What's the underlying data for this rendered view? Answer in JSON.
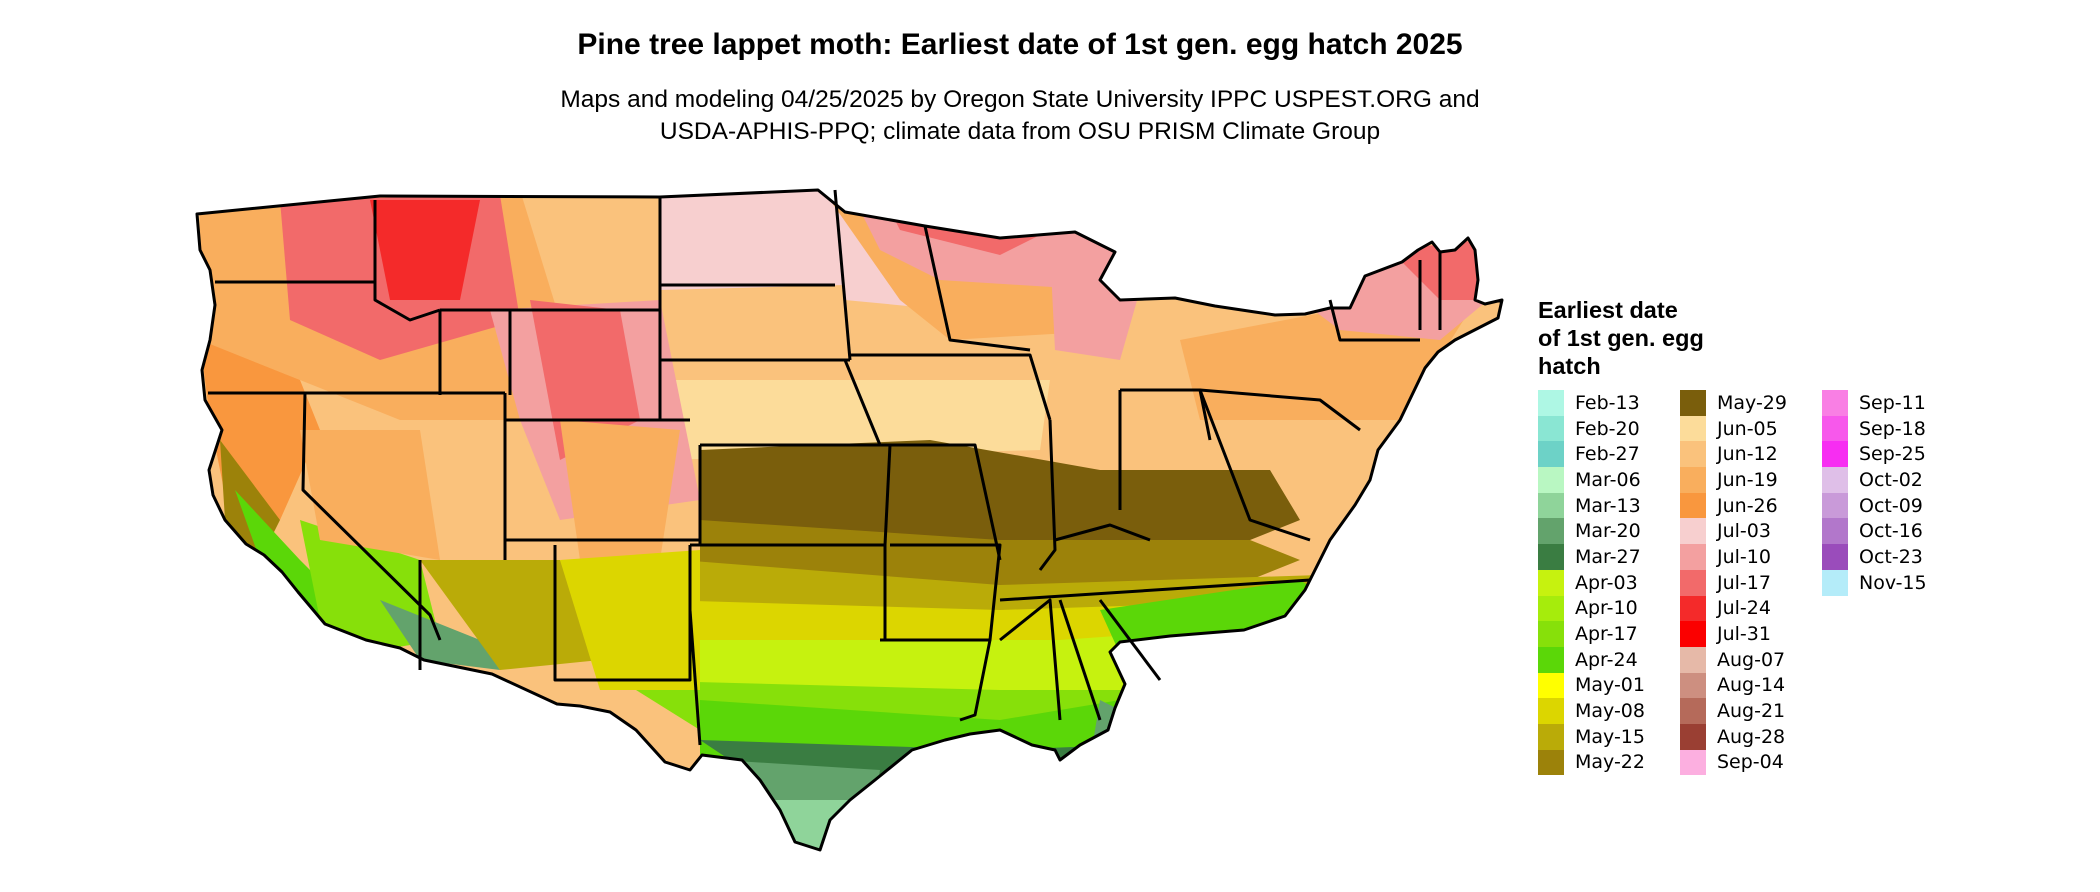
{
  "figure": {
    "title": "Pine tree lappet moth: Earliest date of 1st gen. egg hatch 2025",
    "subtitle_line1": "Maps and modeling 04/25/2025 by Oregon State University IPPC USPEST.ORG and",
    "subtitle_line2": "USDA-APHIS-PPQ; climate data from OSU PRISM Climate Group"
  },
  "legend": {
    "title_line1": "Earliest date",
    "title_line2": "of 1st gen. egg",
    "title_line3": "hatch",
    "columns": [
      [
        {
          "label": "Feb-13",
          "color": "#aef7e4"
        },
        {
          "label": "Feb-20",
          "color": "#8ae6d3"
        },
        {
          "label": "Feb-27",
          "color": "#6dd2c7"
        },
        {
          "label": "Mar-06",
          "color": "#b9f7c2"
        },
        {
          "label": "Mar-13",
          "color": "#8fd49a"
        },
        {
          "label": "Mar-20",
          "color": "#63a36c"
        },
        {
          "label": "Mar-27",
          "color": "#3a7d42"
        },
        {
          "label": "Apr-03",
          "color": "#c6f20f"
        },
        {
          "label": "Apr-10",
          "color": "#a6ec0c"
        },
        {
          "label": "Apr-17",
          "color": "#87e00a"
        },
        {
          "label": "Apr-24",
          "color": "#5bd708"
        },
        {
          "label": "May-01",
          "color": "#ffff00"
        },
        {
          "label": "May-08",
          "color": "#dcd600"
        },
        {
          "label": "May-15",
          "color": "#baab08"
        },
        {
          "label": "May-22",
          "color": "#9c820a"
        }
      ],
      [
        {
          "label": "May-29",
          "color": "#7a5e0c"
        },
        {
          "label": "Jun-05",
          "color": "#fcdc9a"
        },
        {
          "label": "Jun-12",
          "color": "#fac27c"
        },
        {
          "label": "Jun-19",
          "color": "#f9ae5d"
        },
        {
          "label": "Jun-26",
          "color": "#f9973e"
        },
        {
          "label": "Jul-03",
          "color": "#f7cfcf"
        },
        {
          "label": "Jul-10",
          "color": "#f3a0a0"
        },
        {
          "label": "Jul-17",
          "color": "#f26a6a"
        },
        {
          "label": "Jul-24",
          "color": "#f42a2a"
        },
        {
          "label": "Jul-31",
          "color": "#fb0000"
        },
        {
          "label": "Aug-07",
          "color": "#e6b9a8"
        },
        {
          "label": "Aug-14",
          "color": "#cd8f80"
        },
        {
          "label": "Aug-21",
          "color": "#b56a5a"
        },
        {
          "label": "Aug-28",
          "color": "#9a3f33"
        },
        {
          "label": "Sep-04",
          "color": "#fcafe0"
        }
      ],
      [
        {
          "label": "Sep-11",
          "color": "#f97fe4"
        },
        {
          "label": "Sep-18",
          "color": "#f758eb"
        },
        {
          "label": "Sep-25",
          "color": "#f72df2"
        },
        {
          "label": "Oct-02",
          "color": "#dfbfe8"
        },
        {
          "label": "Oct-09",
          "color": "#c99ad9"
        },
        {
          "label": "Oct-16",
          "color": "#b277cb"
        },
        {
          "label": "Oct-23",
          "color": "#9a4cbb"
        },
        {
          "label": "Nov-15",
          "color": "#b4ecf9"
        }
      ]
    ]
  }
}
